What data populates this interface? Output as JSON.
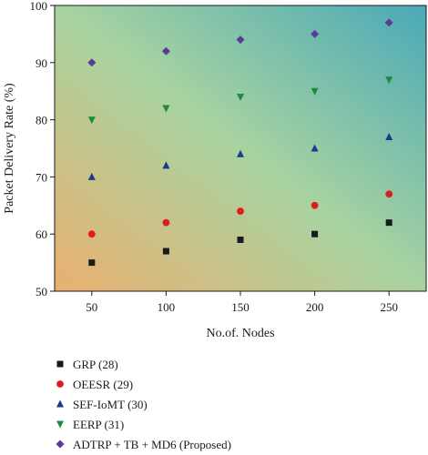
{
  "chart_data": {
    "type": "scatter",
    "xlabel": "No.of. Nodes",
    "ylabel": "Packet Delivery Rate (%)",
    "x": [
      50,
      100,
      150,
      200,
      250
    ],
    "xlim": [
      25,
      275
    ],
    "ylim": [
      50,
      100
    ],
    "xticks": [
      "50",
      "100",
      "150",
      "200",
      "250"
    ],
    "yticks": [
      "50",
      "60",
      "70",
      "80",
      "90",
      "100"
    ],
    "grid": false,
    "background": "diagonal gradient (orange lower-left to teal upper-right)",
    "legend_position": "below",
    "series": [
      {
        "name": "GRP (28)",
        "marker": "square",
        "color": "#1a1a1a",
        "values": [
          55,
          57,
          59,
          60,
          62
        ]
      },
      {
        "name": "OEESR (29)",
        "marker": "circle",
        "color": "#e11b1b",
        "values": [
          60,
          62,
          64,
          65,
          67
        ]
      },
      {
        "name": "SEF-IoMT (30)",
        "marker": "triangle-up",
        "color": "#1b3a8c",
        "values": [
          70,
          72,
          74,
          75,
          77
        ]
      },
      {
        "name": "EERP (31)",
        "marker": "triangle-down",
        "color": "#1f8a3c",
        "values": [
          80,
          82,
          84,
          85,
          87
        ]
      },
      {
        "name": "ADTRP + TB + MD6 (Proposed)",
        "marker": "diamond",
        "color": "#5b3a9a",
        "values": [
          90,
          92,
          94,
          95,
          97
        ]
      }
    ]
  }
}
